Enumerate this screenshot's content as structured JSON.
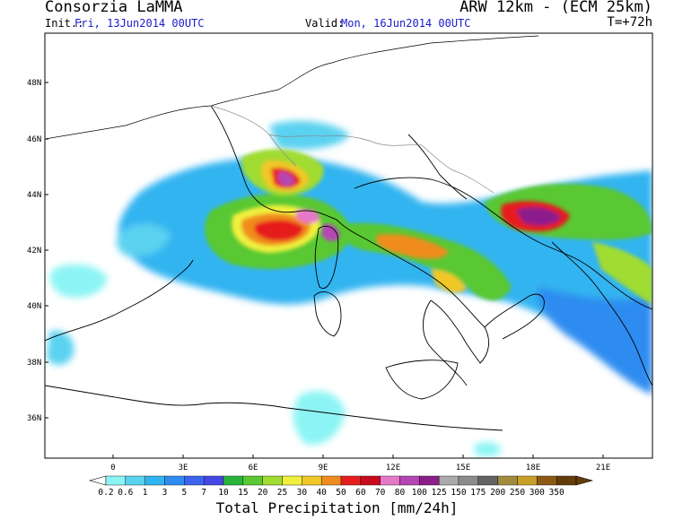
{
  "header": {
    "org": "Consorzia LaMMA",
    "model": "ARW 12km - (ECM 25km)",
    "init_label": "Init.:",
    "init_value": "Fri, 13Jun2014 00UTC",
    "valid_label": "Valid:",
    "valid_value": "Mon, 16Jun2014 00UTC",
    "timestep": "T=+72h"
  },
  "map": {
    "lat_labels": [
      "48N",
      "46N",
      "44N",
      "42N",
      "40N",
      "38N",
      "36N"
    ],
    "lon_labels": [
      "0",
      "3E",
      "6E",
      "9E",
      "12E",
      "15E",
      "18E",
      "21E"
    ]
  },
  "colorbar": {
    "title": "Total Precipitation [mm/24h]",
    "levels": [
      "0.2",
      "0.6",
      "1",
      "3",
      "5",
      "7",
      "10",
      "15",
      "20",
      "25",
      "30",
      "40",
      "50",
      "60",
      "70",
      "80",
      "100",
      "125",
      "150",
      "175",
      "200",
      "250",
      "300",
      "350"
    ],
    "colors": [
      "#8cf4f4",
      "#5ad2f0",
      "#30b4f0",
      "#2e8cf0",
      "#3c64f0",
      "#4646e6",
      "#28b43c",
      "#5ac832",
      "#a0dc32",
      "#f0f03c",
      "#f0c828",
      "#f08c1e",
      "#e61e1e",
      "#c80a1e",
      "#e678c8",
      "#b446b4",
      "#8c1e8c",
      "#aaaaaa",
      "#8c8c8c",
      "#646464",
      "#a08c3c",
      "#c8a028",
      "#8c5a14",
      "#643c0a"
    ]
  }
}
